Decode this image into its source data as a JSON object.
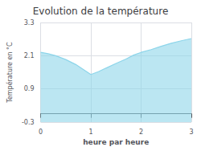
{
  "chart_data": {
    "type": "area",
    "title": "Evolution de la température",
    "xlabel": "heure par heure",
    "ylabel": "Température en °C",
    "x": [
      0,
      0.15,
      0.3,
      0.5,
      0.7,
      0.85,
      1.0,
      1.15,
      1.3,
      1.5,
      1.7,
      1.85,
      2.0,
      2.2,
      2.4,
      2.6,
      2.8,
      3.0
    ],
    "values": [
      2.22,
      2.17,
      2.1,
      1.96,
      1.78,
      1.6,
      1.42,
      1.52,
      1.65,
      1.82,
      1.98,
      2.12,
      2.22,
      2.32,
      2.44,
      2.55,
      2.64,
      2.72
    ],
    "xlim": [
      0,
      3
    ],
    "ylim": [
      -0.3,
      3.3
    ],
    "xticks": [
      0,
      1,
      2,
      3
    ],
    "yticks": [
      -0.3,
      0.9,
      2.1,
      3.3
    ],
    "color": "#8dd5ea",
    "grid": true
  }
}
